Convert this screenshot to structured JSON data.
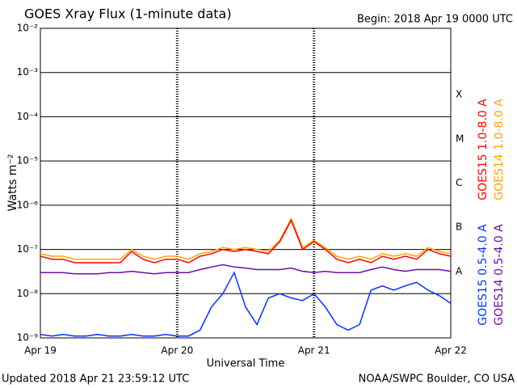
{
  "chart_data": {
    "type": "line",
    "title": "GOES Xray Flux (1-minute data)",
    "subtitle": "Begin:  2018 Apr 19 0000 UTC",
    "ylabel": "Watts m⁻²",
    "xlabel": "Universal Time",
    "footer_left": "Updated 2018 Apr 21 23:59:12 UTC",
    "footer_right": "NOAA/SWPC Boulder, CO USA",
    "log_y": true,
    "grid": true,
    "class_labels": [
      "X",
      "M",
      "C",
      "B",
      "A"
    ],
    "xlim": [
      0,
      72
    ],
    "xticks": [
      {
        "value": 0,
        "label": "Apr 19"
      },
      {
        "value": 24,
        "label": "Apr 20"
      },
      {
        "value": 48,
        "label": "Apr 21"
      },
      {
        "value": 72,
        "label": "Apr 22"
      }
    ],
    "ylim": [
      1e-09,
      0.01
    ],
    "yticks": [
      {
        "value": 1e-09,
        "label": "10⁻⁹"
      },
      {
        "value": 1e-08,
        "label": "10⁻⁸"
      },
      {
        "value": 1e-07,
        "label": "10⁻⁷"
      },
      {
        "value": 1e-06,
        "label": "10⁻⁶"
      },
      {
        "value": 1e-05,
        "label": "10⁻⁵"
      },
      {
        "value": 0.0001,
        "label": "10⁻⁴"
      },
      {
        "value": 0.001,
        "label": "10⁻³"
      },
      {
        "value": 0.01,
        "label": "10⁻²"
      }
    ],
    "x": [
      0,
      2,
      4,
      6,
      8,
      10,
      12,
      14,
      16,
      18,
      20,
      22,
      24,
      26,
      28,
      30,
      32,
      34,
      36,
      38,
      40,
      42,
      44,
      46,
      48,
      50,
      52,
      54,
      56,
      58,
      60,
      62,
      64,
      66,
      68,
      70,
      72
    ],
    "series": [
      {
        "name": "GOES14 1.0-8.0 A",
        "color": "#ffa500",
        "values": [
          8e-08,
          7e-08,
          7e-08,
          6e-08,
          6e-08,
          6e-08,
          6e-08,
          6e-08,
          1e-07,
          7e-08,
          6e-08,
          7e-08,
          7e-08,
          6e-08,
          8e-08,
          9e-08,
          1.1e-07,
          1e-07,
          1.1e-07,
          1e-07,
          9e-08,
          1.6e-07,
          5e-07,
          1.1e-07,
          1.6e-07,
          1.1e-07,
          7e-08,
          6e-08,
          7e-08,
          6e-08,
          8e-08,
          7e-08,
          8e-08,
          7e-08,
          1.1e-07,
          9e-08,
          8e-08
        ]
      },
      {
        "name": "GOES15 1.0-8.0 A",
        "color": "#ff0000",
        "values": [
          7e-08,
          6e-08,
          6e-08,
          5e-08,
          5e-08,
          5e-08,
          5e-08,
          5e-08,
          9e-08,
          6e-08,
          5e-08,
          6e-08,
          6e-08,
          5e-08,
          7e-08,
          8e-08,
          1e-07,
          9e-08,
          1e-07,
          9e-08,
          8e-08,
          1.5e-07,
          4.5e-07,
          1e-07,
          1.5e-07,
          1e-07,
          6e-08,
          5e-08,
          6e-08,
          5e-08,
          7e-08,
          6e-08,
          7e-08,
          6e-08,
          1e-07,
          8e-08,
          7e-08
        ]
      },
      {
        "name": "GOES14 0.5-4.0 A",
        "color": "#6a0dad",
        "values": [
          3e-08,
          3e-08,
          3e-08,
          2.8e-08,
          2.8e-08,
          2.8e-08,
          3e-08,
          3e-08,
          3.2e-08,
          3e-08,
          2.8e-08,
          3e-08,
          3e-08,
          3e-08,
          3.5e-08,
          4e-08,
          4.5e-08,
          4e-08,
          3.8e-08,
          3.5e-08,
          3.5e-08,
          3.5e-08,
          3.8e-08,
          3.2e-08,
          3e-08,
          3.2e-08,
          3e-08,
          3e-08,
          3e-08,
          3.5e-08,
          4e-08,
          3.5e-08,
          3.2e-08,
          3.5e-08,
          3.5e-08,
          3.5e-08,
          3.2e-08
        ]
      },
      {
        "name": "GOES15 0.5-4.0 A",
        "color": "#0033ff",
        "values": [
          1.2e-09,
          1.1e-09,
          1.2e-09,
          1.1e-09,
          1.1e-09,
          1.2e-09,
          1.1e-09,
          1.1e-09,
          1.2e-09,
          1.1e-09,
          1.1e-09,
          1.2e-09,
          1.1e-09,
          1.1e-09,
          1.5e-09,
          5e-09,
          1e-08,
          3e-08,
          5e-09,
          2e-09,
          8e-09,
          1e-08,
          8e-09,
          7e-09,
          1e-08,
          5e-09,
          2e-09,
          1.5e-09,
          2e-09,
          1.2e-08,
          1.5e-08,
          1.2e-08,
          1.5e-08,
          1.8e-08,
          1.2e-08,
          9e-09,
          6e-09
        ]
      }
    ]
  }
}
